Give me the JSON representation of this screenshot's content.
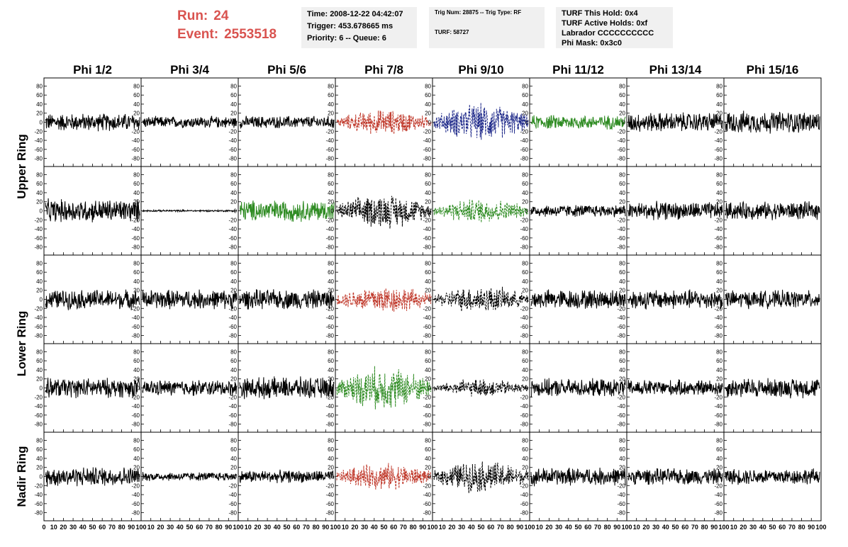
{
  "header": {
    "run_label": "Run:",
    "run_value": "24",
    "event_label": "Event:",
    "event_value": "2553518",
    "time": "Time: 2008-12-22 04:42:07",
    "trigger": "Trigger: 453.678665 ms",
    "priority": "Priority: 6 -- Queue: 6",
    "trig_num": "Trig Num: 28875 -- Trig Type: RF",
    "turf": "TURF: 58727",
    "turf_hold": "TURF This Hold: 0x4",
    "turf_active": "TURF Active Holds: 0xf",
    "labrador": "Labrador CCCCCCCCCC",
    "phi_mask": "Phi Mask: 0x3c0"
  },
  "colors": {
    "header_text": "#d9534f",
    "black": "#000000",
    "red": "#c0392b",
    "blue": "#1f2a8a",
    "green": "#2e8b22"
  },
  "chart_data": {
    "type": "line",
    "columns": [
      "Phi 1/2",
      "Phi 3/4",
      "Phi 5/6",
      "Phi 7/8",
      "Phi 9/10",
      "Phi 11/12",
      "Phi 13/14",
      "Phi 15/16"
    ],
    "row_groups": [
      "Upper Ring",
      "Lower Ring",
      "Nadir Ring"
    ],
    "xlim": [
      0,
      100
    ],
    "ylim": [
      -90,
      90
    ],
    "xticks": [
      "0",
      "10",
      "20",
      "30",
      "40",
      "50",
      "60",
      "70",
      "80",
      "90",
      "100"
    ],
    "yticks": [
      "80",
      "60",
      "40",
      "20",
      "0",
      "-20",
      "-40",
      "-60",
      "-80"
    ],
    "panels": [
      [
        {
          "color": "black",
          "amp": 20,
          "style": "solid"
        },
        {
          "color": "black",
          "amp": 13,
          "style": "solid"
        },
        {
          "color": "black",
          "amp": 14,
          "style": "solid"
        },
        {
          "color": "red",
          "amp": 28,
          "style": "dashed"
        },
        {
          "color": "blue",
          "amp": 42,
          "style": "dashed"
        },
        {
          "color": "green",
          "amp": 16,
          "style": "solid"
        },
        {
          "color": "black",
          "amp": 22,
          "style": "solid"
        },
        {
          "color": "black",
          "amp": 25,
          "style": "solid"
        }
      ],
      [
        {
          "color": "black",
          "amp": 26,
          "style": "solid"
        },
        {
          "color": "black",
          "amp": 2,
          "style": "solid"
        },
        {
          "color": "green",
          "amp": 24,
          "style": "solid"
        },
        {
          "color": "black",
          "amp": 38,
          "style": "dashed"
        },
        {
          "color": "green",
          "amp": 28,
          "style": "dashed"
        },
        {
          "color": "black",
          "amp": 14,
          "style": "solid"
        },
        {
          "color": "black",
          "amp": 20,
          "style": "solid"
        },
        {
          "color": "black",
          "amp": 20,
          "style": "solid"
        }
      ],
      [
        {
          "color": "black",
          "amp": 22,
          "style": "solid"
        },
        {
          "color": "black",
          "amp": 22,
          "style": "solid"
        },
        {
          "color": "black",
          "amp": 22,
          "style": "solid"
        },
        {
          "color": "red",
          "amp": 32,
          "style": "dashed"
        },
        {
          "color": "black",
          "amp": 30,
          "style": "dashed"
        },
        {
          "color": "black",
          "amp": 22,
          "style": "solid"
        },
        {
          "color": "black",
          "amp": 22,
          "style": "solid"
        },
        {
          "color": "black",
          "amp": 20,
          "style": "solid"
        }
      ],
      [
        {
          "color": "black",
          "amp": 22,
          "style": "solid"
        },
        {
          "color": "black",
          "amp": 18,
          "style": "solid"
        },
        {
          "color": "black",
          "amp": 24,
          "style": "solid"
        },
        {
          "color": "green",
          "amp": 48,
          "style": "dashed"
        },
        {
          "color": "black",
          "amp": 20,
          "style": "dashed"
        },
        {
          "color": "black",
          "amp": 20,
          "style": "solid"
        },
        {
          "color": "black",
          "amp": 18,
          "style": "solid"
        },
        {
          "color": "black",
          "amp": 22,
          "style": "solid"
        }
      ],
      [
        {
          "color": "black",
          "amp": 22,
          "style": "solid"
        },
        {
          "color": "black",
          "amp": 10,
          "style": "solid"
        },
        {
          "color": "black",
          "amp": 14,
          "style": "solid"
        },
        {
          "color": "red",
          "amp": 30,
          "style": "dashed"
        },
        {
          "color": "black",
          "amp": 36,
          "style": "dashed"
        },
        {
          "color": "black",
          "amp": 20,
          "style": "solid"
        },
        {
          "color": "black",
          "amp": 18,
          "style": "solid"
        },
        {
          "color": "black",
          "amp": 18,
          "style": "solid"
        }
      ]
    ]
  }
}
